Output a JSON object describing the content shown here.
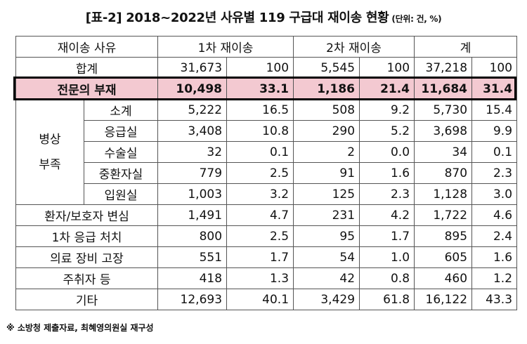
{
  "title": "[표-2] 2018~2022년 사유별 119 구급대 재이송 현황",
  "unit": "(단위: 건, %)",
  "header": {
    "reason": "재이송 사유",
    "first": "1차 재이송",
    "second": "2차 재이송",
    "total": "계"
  },
  "rows": {
    "sum": {
      "label": "합계",
      "a": "31,673",
      "b": "100",
      "c": "5,545",
      "d": "100",
      "e": "37,218",
      "f": "100"
    },
    "specialist": {
      "label": "전문의 부재",
      "a": "10,498",
      "b": "33.1",
      "c": "1,186",
      "d": "21.4",
      "e": "11,684",
      "f": "31.4"
    },
    "subtotal": {
      "label": "소계",
      "a": "5,222",
      "b": "16.5",
      "c": "508",
      "d": "9.2",
      "e": "5,730",
      "f": "15.4"
    },
    "er": {
      "label": "응급실",
      "a": "3,408",
      "b": "10.8",
      "c": "290",
      "d": "5.2",
      "e": "3,698",
      "f": "9.9"
    },
    "surgery": {
      "label": "수술실",
      "a": "32",
      "b": "0.1",
      "c": "2",
      "d": "0.0",
      "e": "34",
      "f": "0.1"
    },
    "icu": {
      "label": "중환자실",
      "a": "779",
      "b": "2.5",
      "c": "91",
      "d": "1.6",
      "e": "870",
      "f": "2.3"
    },
    "ward": {
      "label": "입원실",
      "a": "1,003",
      "b": "3.2",
      "c": "125",
      "d": "2.3",
      "e": "1,128",
      "f": "3.0"
    },
    "change": {
      "label": "환자/보호자 변심",
      "a": "1,491",
      "b": "4.7",
      "c": "231",
      "d": "4.2",
      "e": "1,722",
      "f": "4.6"
    },
    "firstaid": {
      "label": "1차 응급 처치",
      "a": "800",
      "b": "2.5",
      "c": "95",
      "d": "1.7",
      "e": "895",
      "f": "2.4"
    },
    "equipment": {
      "label": "의료 장비 고장",
      "a": "551",
      "b": "1.7",
      "c": "54",
      "d": "1.0",
      "e": "605",
      "f": "1.6"
    },
    "drunk": {
      "label": "주취자 등",
      "a": "418",
      "b": "1.3",
      "c": "42",
      "d": "0.8",
      "e": "460",
      "f": "1.2"
    },
    "other": {
      "label": "기타",
      "a": "12,693",
      "b": "40.1",
      "c": "3,429",
      "d": "61.8",
      "e": "16,122",
      "f": "43.3"
    }
  },
  "group_label_1": "병상",
  "group_label_2": "부족",
  "footnote": "※ 소방청 제출자료, 최혜영의원실 재구성",
  "highlight_color": "#f3c9d1"
}
